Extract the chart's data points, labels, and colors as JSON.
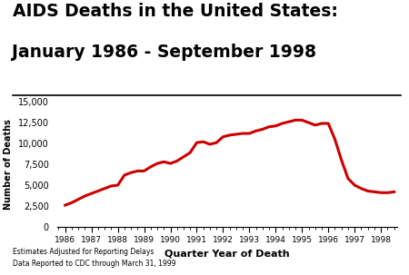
{
  "title_line1": "AIDS Deaths in the United States:",
  "title_line2": "January 1986 - September 1998",
  "xlabel": "Quarter Year of Death",
  "ylabel": "Number of Deaths",
  "footnote_line1": "Estimates Adjusted for Reporting Delays",
  "footnote_line2": "Data Reported to CDC through March 31, 1999",
  "line_color": "#cc0000",
  "line_width": 2.2,
  "background_color": "#ffffff",
  "ylim": [
    0,
    15000
  ],
  "yticks": [
    0,
    2500,
    5000,
    7500,
    10000,
    12500,
    15000
  ],
  "x_tick_labels": [
    "1986",
    "1987",
    "1988",
    "1989",
    "1990",
    "1991",
    "1992",
    "1993",
    "1994",
    "1995",
    "1996",
    "1997",
    "1998"
  ],
  "title_fontsize": 13.5,
  "xlabel_fontsize": 8,
  "ylabel_fontsize": 7,
  "footnote_fontsize": 5.5,
  "tick_labelsize": 7,
  "x_values": [
    0,
    0.25,
    0.5,
    0.75,
    1,
    1.25,
    1.5,
    1.75,
    2,
    2.25,
    2.5,
    2.75,
    3,
    3.25,
    3.5,
    3.75,
    4,
    4.25,
    4.5,
    4.75,
    5,
    5.25,
    5.5,
    5.75,
    6,
    6.25,
    6.5,
    6.75,
    7,
    7.25,
    7.5,
    7.75,
    8,
    8.25,
    8.5,
    8.75,
    9,
    9.25,
    9.5,
    9.75,
    10,
    10.25,
    10.5,
    10.75,
    11,
    11.25,
    11.5,
    11.75,
    12,
    12.25,
    12.5
  ],
  "y_values": [
    2600,
    2900,
    3300,
    3700,
    4000,
    4300,
    4600,
    4900,
    5000,
    6200,
    6500,
    6700,
    6700,
    7200,
    7600,
    7800,
    7600,
    7900,
    8400,
    8900,
    10100,
    10200,
    9900,
    10100,
    10800,
    11000,
    11100,
    11200,
    11200,
    11500,
    11700,
    12000,
    12100,
    12400,
    12600,
    12800,
    12800,
    12500,
    12200,
    12400,
    12400,
    10500,
    8000,
    5800,
    5000,
    4600,
    4300,
    4200,
    4100,
    4100,
    4200
  ]
}
